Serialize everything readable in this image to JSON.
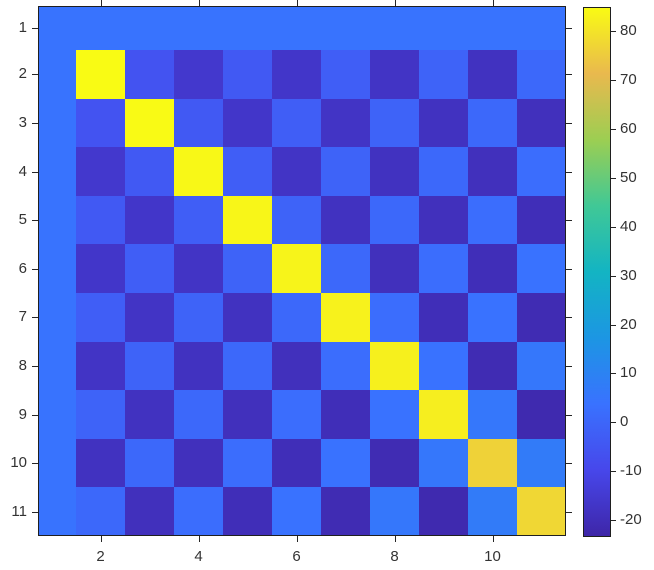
{
  "chart_data": {
    "type": "heatmap",
    "title": "",
    "xlabel": "",
    "ylabel": "",
    "rows": 11,
    "cols": 11,
    "x_range": [
      1,
      11
    ],
    "y_range": [
      1,
      11
    ],
    "grid": false,
    "matrix": [
      [
        4,
        4,
        4,
        4,
        4,
        4,
        4,
        4,
        4,
        4,
        4
      ],
      [
        4,
        85,
        -6,
        -16,
        -4.4,
        -16.9,
        -2.8,
        -17.7,
        -1.1,
        -18.6,
        0.5
      ],
      [
        4,
        -6,
        84.7,
        -4.4,
        -16.9,
        -2.8,
        -17.7,
        -1.1,
        -18.6,
        0.5,
        -19.4
      ],
      [
        4,
        -16,
        -4.4,
        84.3,
        -2.8,
        -17.7,
        -1.1,
        -18.6,
        0.5,
        -19.4,
        2.1
      ],
      [
        4,
        -4.4,
        -16.9,
        -2.8,
        84,
        -1.1,
        -18.6,
        0.5,
        -19.4,
        2.1,
        -20.3
      ],
      [
        4,
        -16.9,
        -2.8,
        -17.7,
        -1.1,
        83.6,
        0.5,
        -19.4,
        2.1,
        -20.3,
        3.8
      ],
      [
        4,
        -2.8,
        -17.7,
        -1.1,
        -18.6,
        0.5,
        83.2,
        2.1,
        -20.3,
        3.8,
        -21.2
      ],
      [
        4,
        -17.7,
        -1.1,
        -18.6,
        0.5,
        -19.4,
        2.1,
        82.8,
        3.8,
        -21.2,
        5.4
      ],
      [
        4,
        -1.1,
        -18.6,
        0.5,
        -19.4,
        2.1,
        -20.3,
        3.8,
        82.4,
        5.4,
        -22
      ],
      [
        4,
        -18.6,
        0.5,
        -19.4,
        2.1,
        -20.3,
        3.8,
        -21.2,
        5.4,
        76.5,
        7
      ],
      [
        4,
        0.5,
        -19.4,
        2.1,
        -20.3,
        3.8,
        -21.2,
        5.4,
        -22,
        7,
        77.5
      ]
    ],
    "ytick_values": [
      1,
      2,
      3,
      4,
      5,
      6,
      7,
      8,
      9,
      10,
      11
    ],
    "ytick_labels": [
      "1",
      "2",
      "3",
      "4",
      "5",
      "6",
      "7",
      "8",
      "9",
      "10",
      "11"
    ],
    "xtick_values": [
      2,
      4,
      6,
      8,
      10
    ],
    "xtick_labels": [
      "2",
      "4",
      "6",
      "8",
      "10"
    ],
    "colorbar": {
      "vmin": -23.5,
      "vmax": 85,
      "tick_values": [
        80,
        70,
        60,
        50,
        40,
        30,
        20,
        10,
        0,
        -10,
        -20
      ],
      "tick_labels": [
        "80",
        "70",
        "60",
        "50",
        "40",
        "30",
        "20",
        "10",
        "0",
        "-10",
        "-20"
      ],
      "position": "right"
    },
    "colormap": {
      "name": "parula",
      "anchors": [
        {
          "t": 0.0,
          "color": "#3e26a8"
        },
        {
          "t": 0.125,
          "color": "#4747eb"
        },
        {
          "t": 0.25,
          "color": "#3972ff"
        },
        {
          "t": 0.375,
          "color": "#1c96e3"
        },
        {
          "t": 0.5,
          "color": "#13b4c3"
        },
        {
          "t": 0.625,
          "color": "#40c896"
        },
        {
          "t": 0.75,
          "color": "#9cce52"
        },
        {
          "t": 0.875,
          "color": "#e9b94e"
        },
        {
          "t": 1.0,
          "color": "#f9fb14"
        }
      ]
    },
    "style": {
      "background": "#ffffff",
      "axis_color": "#262626",
      "tick_label_color": "#333333",
      "tick_direction": "out",
      "box": true
    }
  }
}
